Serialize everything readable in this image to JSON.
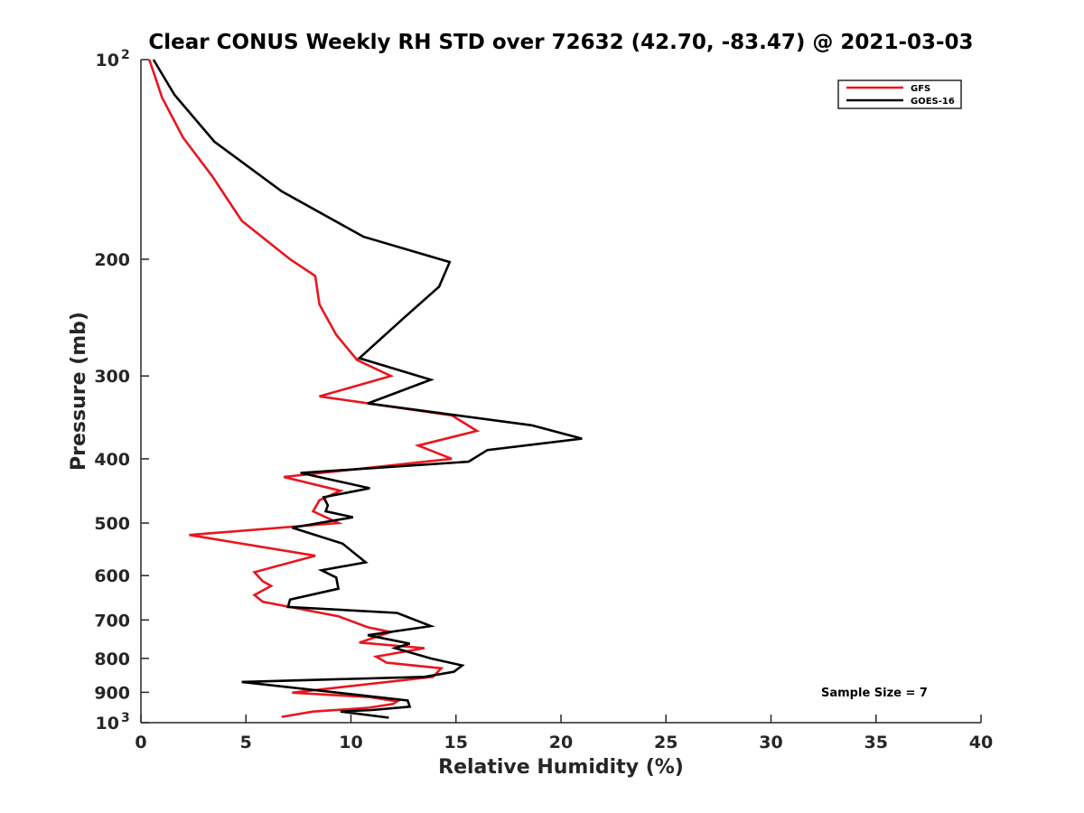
{
  "chart_data": {
    "type": "line",
    "title": "Clear CONUS Weekly RH STD over 72632 (42.70, -83.47) @ 2021-03-03",
    "xlabel": "Relative Humidity (%)",
    "ylabel": "Pressure (mb)",
    "xlim": [
      0,
      40
    ],
    "ylim": [
      100,
      1000
    ],
    "yscale": "log",
    "y_inverted": true,
    "xticks": [
      "0",
      "5",
      "10",
      "15",
      "20",
      "25",
      "30",
      "35",
      "40"
    ],
    "yticks": [
      {
        "value": 100,
        "label": "10",
        "sup": "2"
      },
      {
        "value": 200,
        "label": "200",
        "sup": ""
      },
      {
        "value": 300,
        "label": "300",
        "sup": ""
      },
      {
        "value": 400,
        "label": "400",
        "sup": ""
      },
      {
        "value": 500,
        "label": "500",
        "sup": ""
      },
      {
        "value": 600,
        "label": "600",
        "sup": ""
      },
      {
        "value": 700,
        "label": "700",
        "sup": ""
      },
      {
        "value": 800,
        "label": "800",
        "sup": ""
      },
      {
        "value": 900,
        "label": "900",
        "sup": ""
      },
      {
        "value": 1000,
        "label": "10",
        "sup": "3"
      }
    ],
    "grid": false,
    "legend_position": "top-right",
    "series": [
      {
        "name": "GFS",
        "color": "#e8161e",
        "points": [
          [
            0.4,
            100
          ],
          [
            1.0,
            114
          ],
          [
            2.0,
            131
          ],
          [
            3.4,
            150
          ],
          [
            4.8,
            175
          ],
          [
            7.1,
            200
          ],
          [
            8.3,
            212
          ],
          [
            8.5,
            234
          ],
          [
            9.3,
            260
          ],
          [
            10.3,
            284
          ],
          [
            11.9,
            300
          ],
          [
            8.5,
            322
          ],
          [
            14.8,
            344
          ],
          [
            16.0,
            363
          ],
          [
            13.2,
            382
          ],
          [
            14.8,
            400
          ],
          [
            6.8,
            426
          ],
          [
            9.5,
            447
          ],
          [
            8.5,
            462
          ],
          [
            8.2,
            480
          ],
          [
            9.4,
            500
          ],
          [
            2.3,
            521
          ],
          [
            8.3,
            560
          ],
          [
            5.4,
            593
          ],
          [
            5.8,
            612
          ],
          [
            6.2,
            622
          ],
          [
            5.4,
            642
          ],
          [
            5.8,
            657
          ],
          [
            9.4,
            691
          ],
          [
            10.8,
            718
          ],
          [
            11.9,
            730
          ],
          [
            10.4,
            757
          ],
          [
            13.5,
            772
          ],
          [
            11.2,
            795
          ],
          [
            11.7,
            812
          ],
          [
            14.3,
            828
          ],
          [
            13.9,
            853
          ],
          [
            7.2,
            901
          ],
          [
            10.9,
            915
          ],
          [
            12.2,
            929
          ],
          [
            12.0,
            937
          ],
          [
            10.8,
            950
          ],
          [
            8.2,
            962
          ],
          [
            6.7,
            980
          ]
        ]
      },
      {
        "name": "GOES-16",
        "color": "#000000",
        "points": [
          [
            0.6,
            100
          ],
          [
            1.6,
            113
          ],
          [
            3.5,
            133
          ],
          [
            6.7,
            158
          ],
          [
            10.6,
            185
          ],
          [
            14.7,
            202
          ],
          [
            14.2,
            220
          ],
          [
            12.6,
            244
          ],
          [
            10.4,
            282
          ],
          [
            13.8,
            304
          ],
          [
            10.8,
            330
          ],
          [
            18.6,
            356
          ],
          [
            21.0,
            373
          ],
          [
            16.5,
            388
          ],
          [
            15.6,
            404
          ],
          [
            7.6,
            420
          ],
          [
            10.9,
            443
          ],
          [
            8.7,
            457
          ],
          [
            8.9,
            470
          ],
          [
            8.8,
            480
          ],
          [
            10.1,
            490
          ],
          [
            7.2,
            508
          ],
          [
            9.6,
            537
          ],
          [
            10.7,
            573
          ],
          [
            8.6,
            589
          ],
          [
            9.3,
            604
          ],
          [
            9.4,
            628
          ],
          [
            7.1,
            652
          ],
          [
            7.0,
            669
          ],
          [
            12.2,
            683
          ],
          [
            13.8,
            715
          ],
          [
            10.8,
            738
          ],
          [
            12.8,
            760
          ],
          [
            12.1,
            772
          ],
          [
            13.8,
            800
          ],
          [
            15.3,
            820
          ],
          [
            14.9,
            838
          ],
          [
            13.5,
            853
          ],
          [
            4.8,
            868
          ],
          [
            12.7,
            926
          ],
          [
            12.8,
            946
          ],
          [
            11.0,
            957
          ],
          [
            9.5,
            962
          ],
          [
            11.8,
            983
          ]
        ]
      }
    ],
    "annotations": [
      {
        "text": "Sample Size = 7"
      }
    ]
  }
}
